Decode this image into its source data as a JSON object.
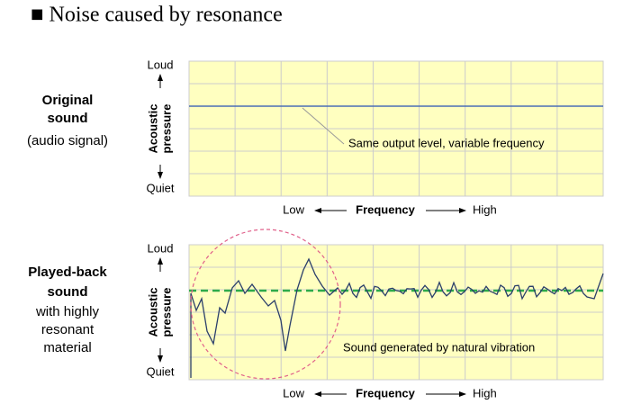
{
  "title": "■ Noise caused by resonance",
  "panels": [
    {
      "label_lines": [
        "Original",
        "sound",
        "(audio signal)"
      ],
      "loud": "Loud",
      "quiet": "Quiet",
      "y_label": [
        "Acoustic",
        "pressure"
      ],
      "annotation": "Same output level, variable frequency",
      "x_low": "Low",
      "x_axis": "Frequency",
      "x_high": "High"
    },
    {
      "label_lines": [
        "Played-back",
        "sound",
        "with highly",
        "resonant",
        "material"
      ],
      "loud": "Loud",
      "quiet": "Quiet",
      "y_label": [
        "Acoustic",
        "pressure"
      ],
      "annotation": "Sound generated by natural vibration",
      "x_low": "Low",
      "x_axis": "Frequency",
      "x_high": "High"
    }
  ]
}
